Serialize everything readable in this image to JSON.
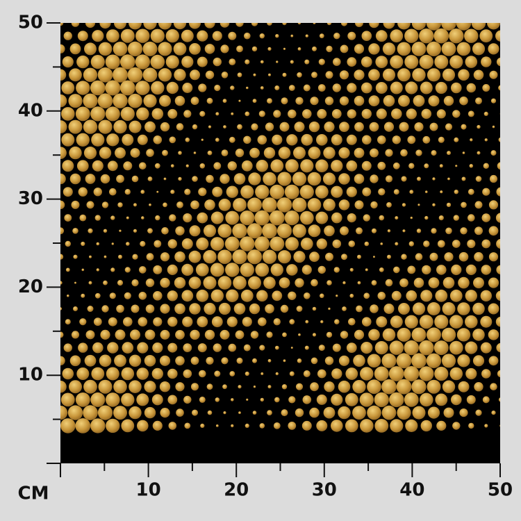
{
  "ruler": {
    "unit": "CM",
    "x_ticks": [
      10,
      20,
      30,
      40,
      50
    ],
    "y_ticks": [
      10,
      20,
      30,
      40,
      50
    ]
  }
}
